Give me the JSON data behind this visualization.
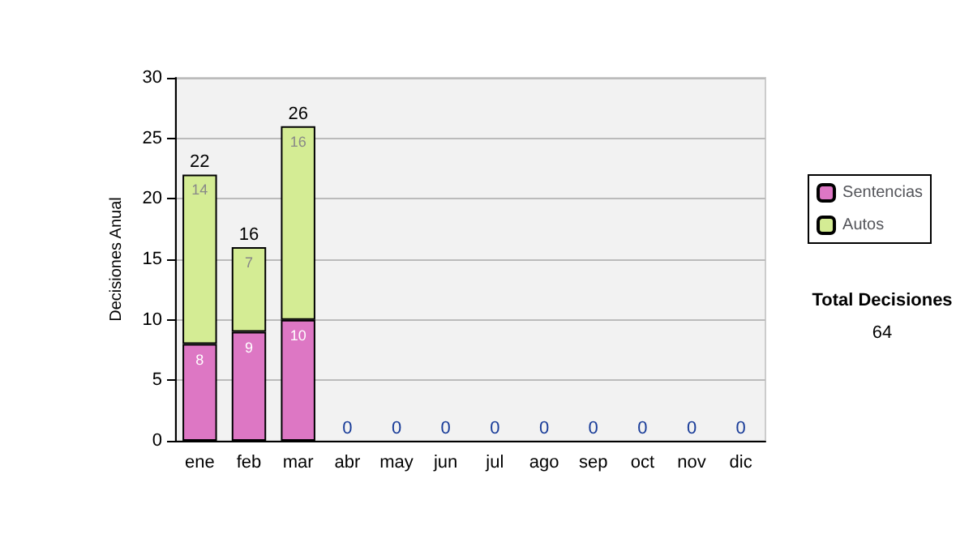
{
  "chart_data": {
    "type": "bar",
    "ylabel": "Decisiones Anual",
    "categories": [
      "ene",
      "feb",
      "mar",
      "abr",
      "may",
      "jun",
      "jul",
      "ago",
      "sep",
      "oct",
      "nov",
      "dic"
    ],
    "stacked": true,
    "series": [
      {
        "name": "Sentencias",
        "color": "#dd77c4",
        "values": [
          8,
          9,
          10,
          0,
          0,
          0,
          0,
          0,
          0,
          0,
          0,
          0
        ],
        "value_labels": [
          "8",
          "9",
          "10",
          null,
          null,
          null,
          null,
          null,
          null,
          null,
          null,
          null
        ]
      },
      {
        "name": "Autos",
        "color": "#d4ec94",
        "values": [
          14,
          7,
          16,
          0,
          0,
          0,
          0,
          0,
          0,
          0,
          0,
          0
        ],
        "value_labels": [
          "14",
          "7",
          "16",
          null,
          null,
          null,
          null,
          null,
          null,
          null,
          null,
          null
        ]
      }
    ],
    "totals": [
      "22",
      "16",
      "26",
      "0",
      "0",
      "0",
      "0",
      "0",
      "0",
      "0",
      "0",
      "0"
    ],
    "ylim": [
      0,
      30
    ],
    "yticks": [
      0,
      5,
      10,
      15,
      20,
      25,
      30
    ],
    "grid": "y",
    "legend": "right",
    "annotations": [
      "Total Decisiones",
      "64"
    ]
  }
}
